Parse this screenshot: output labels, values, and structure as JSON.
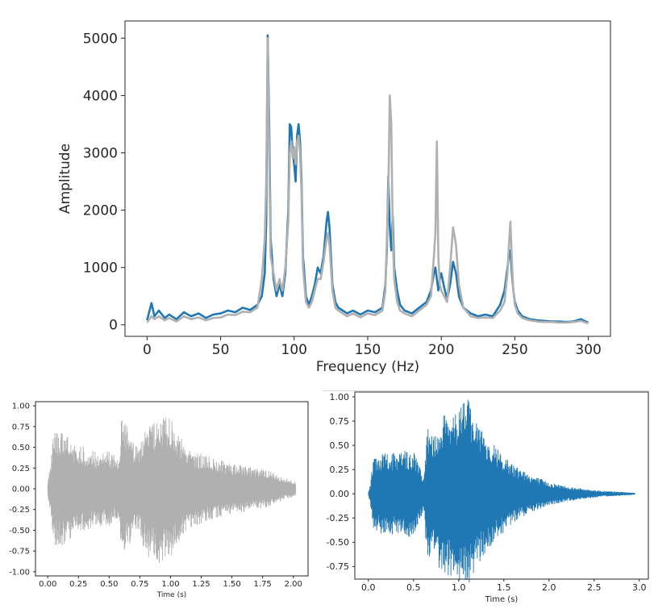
{
  "chart_data": [
    {
      "type": "line",
      "title": "",
      "xlabel": "Frequency (Hz)",
      "ylabel": "Amplitude",
      "xlim": [
        -15,
        315
      ],
      "ylim": [
        -200,
        5300
      ],
      "xticks": [
        0,
        50,
        100,
        150,
        200,
        250,
        300
      ],
      "yticks": [
        0,
        1000,
        2000,
        3000,
        4000,
        5000
      ],
      "grid": false,
      "legend": "none",
      "series": [
        {
          "color": "#1f77b4",
          "x": [
            0,
            3,
            5,
            8,
            12,
            15,
            20,
            25,
            30,
            35,
            40,
            45,
            50,
            55,
            60,
            65,
            70,
            75,
            78,
            80,
            81,
            82,
            83,
            84,
            86,
            88,
            90,
            92,
            94,
            96,
            97,
            98,
            99,
            100,
            101,
            102,
            103,
            104,
            105,
            106,
            108,
            110,
            112,
            114,
            116,
            118,
            120,
            122,
            123,
            124,
            125,
            126,
            128,
            130,
            133,
            136,
            140,
            145,
            150,
            155,
            160,
            162,
            163,
            164,
            165,
            166,
            167,
            168,
            170,
            172,
            175,
            180,
            185,
            190,
            193,
            195,
            196,
            197,
            198,
            199,
            200,
            202,
            204,
            206,
            208,
            210,
            212,
            215,
            220,
            225,
            230,
            235,
            240,
            243,
            245,
            246,
            247,
            248,
            249,
            250,
            252,
            255,
            260,
            265,
            270,
            275,
            280,
            285,
            290,
            295,
            298,
            300
          ],
          "y": [
            80,
            380,
            150,
            250,
            120,
            180,
            100,
            220,
            150,
            200,
            120,
            180,
            200,
            250,
            220,
            300,
            260,
            350,
            500,
            900,
            1800,
            5050,
            3500,
            1500,
            800,
            500,
            700,
            500,
            900,
            2000,
            3500,
            3450,
            3000,
            2800,
            2500,
            3300,
            3500,
            3200,
            2500,
            1200,
            500,
            350,
            500,
            700,
            1000,
            900,
            1200,
            1800,
            1970,
            1700,
            1200,
            700,
            400,
            300,
            250,
            200,
            250,
            180,
            250,
            220,
            300,
            700,
            1300,
            2600,
            1700,
            1300,
            1900,
            1000,
            600,
            350,
            250,
            200,
            300,
            400,
            600,
            900,
            1000,
            800,
            600,
            800,
            900,
            650,
            450,
            700,
            1100,
            900,
            500,
            300,
            200,
            150,
            180,
            150,
            350,
            600,
            1000,
            1200,
            1300,
            900,
            600,
            400,
            250,
            150,
            100,
            80,
            70,
            60,
            60,
            50,
            60,
            100,
            60,
            40
          ]
        },
        {
          "color": "#b0b0b0",
          "x": [
            0,
            3,
            5,
            8,
            12,
            15,
            20,
            25,
            30,
            35,
            40,
            45,
            50,
            55,
            60,
            65,
            70,
            75,
            78,
            80,
            81,
            82,
            83,
            84,
            86,
            88,
            90,
            92,
            94,
            96,
            97,
            98,
            99,
            100,
            101,
            102,
            103,
            104,
            105,
            106,
            108,
            110,
            112,
            114,
            116,
            118,
            120,
            122,
            123,
            124,
            125,
            126,
            128,
            130,
            133,
            136,
            140,
            145,
            150,
            155,
            160,
            162,
            163,
            164,
            165,
            166,
            167,
            168,
            170,
            172,
            175,
            180,
            185,
            190,
            193,
            195,
            196,
            197,
            198,
            199,
            200,
            202,
            204,
            206,
            208,
            210,
            212,
            215,
            220,
            225,
            230,
            235,
            240,
            243,
            245,
            246,
            247,
            248,
            249,
            250,
            252,
            255,
            260,
            265,
            270,
            275,
            280,
            285,
            290,
            295,
            298,
            300
          ],
          "y": [
            40,
            150,
            100,
            150,
            80,
            120,
            60,
            150,
            100,
            130,
            80,
            120,
            130,
            180,
            170,
            230,
            220,
            300,
            800,
            1500,
            2500,
            5000,
            3000,
            1200,
            900,
            600,
            800,
            600,
            1000,
            1800,
            3000,
            3200,
            2900,
            3100,
            2800,
            3200,
            3300,
            3000,
            2300,
            1000,
            400,
            300,
            400,
            600,
            800,
            800,
            1100,
            1500,
            1600,
            1400,
            1000,
            600,
            300,
            250,
            200,
            150,
            200,
            130,
            200,
            170,
            250,
            600,
            1500,
            2300,
            4000,
            3500,
            1600,
            800,
            400,
            250,
            200,
            150,
            250,
            350,
            500,
            1200,
            1600,
            3200,
            1200,
            700,
            600,
            500,
            400,
            1000,
            1700,
            1400,
            700,
            300,
            150,
            120,
            130,
            120,
            250,
            400,
            900,
            1400,
            1800,
            1100,
            600,
            350,
            200,
            120,
            80,
            60,
            50,
            50,
            40,
            40,
            50,
            70,
            40,
            30
          ]
        }
      ]
    },
    {
      "type": "line",
      "title": "",
      "xlabel": "Time (s)",
      "ylabel": "",
      "xlim": [
        -0.1,
        2.12
      ],
      "ylim": [
        -1.05,
        1.05
      ],
      "xticks": [
        "0.00",
        "0.25",
        "0.50",
        "0.75",
        "1.00",
        "1.25",
        "1.50",
        "1.75",
        "2.00"
      ],
      "yticks": [
        "1.00",
        "0.75",
        "0.50",
        "0.25",
        "0.00",
        "-0.25",
        "-0.50",
        "-0.75",
        "-1.00"
      ],
      "grid": false,
      "legend": "none",
      "series": [
        {
          "color": "#b0b0b0",
          "style": "waveform-envelope",
          "x": [
            0.0,
            0.02,
            0.05,
            0.1,
            0.2,
            0.3,
            0.4,
            0.5,
            0.55,
            0.58,
            0.6,
            0.62,
            0.66,
            0.7,
            0.75,
            0.8,
            0.85,
            0.9,
            0.95,
            1.0,
            1.05,
            1.1,
            1.2,
            1.3,
            1.4,
            1.5,
            1.6,
            1.7,
            1.8,
            1.9,
            2.0,
            2.02
          ],
          "y": [
            0.08,
            0.3,
            0.7,
            0.7,
            0.6,
            0.5,
            0.45,
            0.45,
            0.4,
            0.35,
            0.9,
            0.85,
            0.7,
            0.55,
            0.5,
            0.85,
            0.8,
            0.9,
            0.85,
            0.9,
            0.7,
            0.6,
            0.45,
            0.4,
            0.35,
            0.3,
            0.28,
            0.25,
            0.22,
            0.15,
            0.1,
            0.08
          ]
        }
      ]
    },
    {
      "type": "line",
      "title": "",
      "xlabel": "Time (s)",
      "ylabel": "",
      "xlim": [
        -0.15,
        3.1
      ],
      "ylim": [
        -0.88,
        1.05
      ],
      "xticks": [
        "0.0",
        "0.5",
        "1.0",
        "1.5",
        "2.0",
        "2.5",
        "3.0"
      ],
      "yticks": [
        "1.00",
        "0.75",
        "0.50",
        "0.25",
        "0.00",
        "-0.25",
        "-0.50",
        "-0.75"
      ],
      "grid": false,
      "legend": "none",
      "series": [
        {
          "color": "#1f77b4",
          "style": "waveform-envelope",
          "x": [
            0.0,
            0.02,
            0.05,
            0.1,
            0.2,
            0.3,
            0.4,
            0.5,
            0.6,
            0.62,
            0.65,
            0.7,
            0.8,
            0.9,
            1.0,
            1.05,
            1.1,
            1.15,
            1.2,
            1.3,
            1.4,
            1.5,
            1.6,
            1.8,
            2.0,
            2.2,
            2.4,
            2.6,
            2.8,
            2.95
          ],
          "y": [
            0.02,
            0.1,
            0.35,
            0.4,
            0.42,
            0.42,
            0.45,
            0.45,
            0.2,
            0.25,
            0.7,
            0.6,
            0.8,
            0.85,
            0.9,
            0.95,
            1.0,
            0.85,
            0.75,
            0.6,
            0.5,
            0.4,
            0.3,
            0.2,
            0.12,
            0.08,
            0.05,
            0.03,
            0.02,
            0.01
          ]
        }
      ]
    }
  ]
}
